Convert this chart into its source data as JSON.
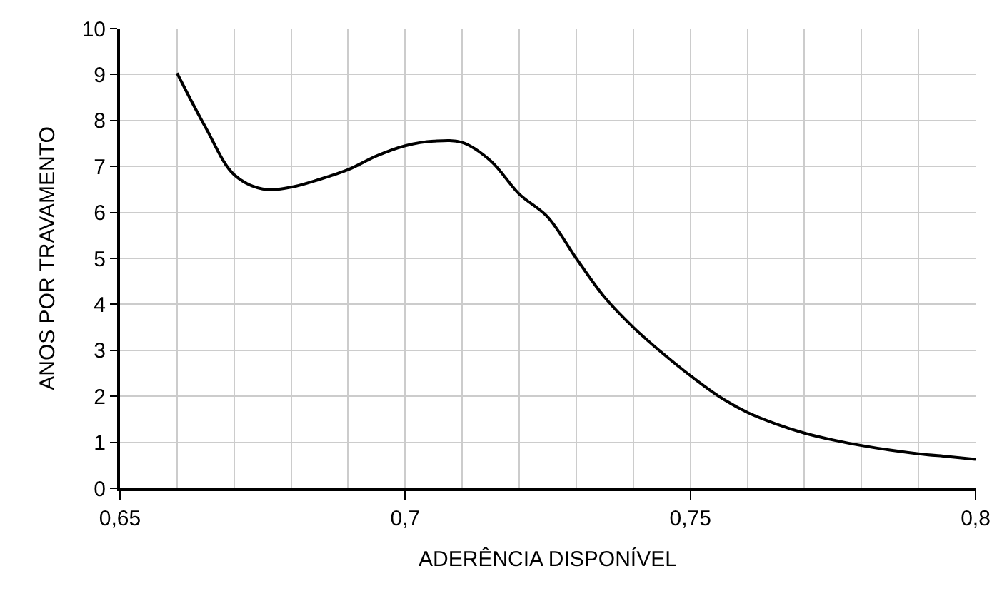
{
  "chart_data": {
    "type": "line",
    "xlabel": "ADERÊNCIA DISPONÍVEL",
    "ylabel": "ANOS POR TRAVAMENTO",
    "x": [
      0.66,
      0.665,
      0.67,
      0.675,
      0.68,
      0.685,
      0.69,
      0.695,
      0.7,
      0.705,
      0.71,
      0.715,
      0.72,
      0.725,
      0.73,
      0.735,
      0.74,
      0.745,
      0.75,
      0.755,
      0.76,
      0.765,
      0.77,
      0.775,
      0.78,
      0.785,
      0.79,
      0.795,
      0.8
    ],
    "series": [
      {
        "color": "#000000",
        "values": [
          9.03,
          7.85,
          6.82,
          6.51,
          6.55,
          6.72,
          6.93,
          7.23,
          7.45,
          7.55,
          7.52,
          7.12,
          6.4,
          5.9,
          5.0,
          4.15,
          3.5,
          2.95,
          2.45,
          2.0,
          1.65,
          1.4,
          1.2,
          1.05,
          0.93,
          0.83,
          0.75,
          0.69,
          0.63
        ]
      }
    ],
    "xlim": [
      0.65,
      0.8
    ],
    "xticks": [
      {
        "value": 0.65,
        "label": "0,65"
      },
      {
        "value": 0.66,
        "label": null
      },
      {
        "value": 0.67,
        "label": null
      },
      {
        "value": 0.68,
        "label": null
      },
      {
        "value": 0.69,
        "label": null
      },
      {
        "value": 0.7,
        "label": "0,7"
      },
      {
        "value": 0.71,
        "label": null
      },
      {
        "value": 0.72,
        "label": null
      },
      {
        "value": 0.73,
        "label": null
      },
      {
        "value": 0.74,
        "label": null
      },
      {
        "value": 0.75,
        "label": "0,75"
      },
      {
        "value": 0.76,
        "label": null
      },
      {
        "value": 0.77,
        "label": null
      },
      {
        "value": 0.78,
        "label": null
      },
      {
        "value": 0.79,
        "label": null
      },
      {
        "value": 0.8,
        "label": "0,8"
      }
    ],
    "ylim": [
      0,
      10
    ],
    "yticks": [
      0,
      1,
      2,
      3,
      4,
      5,
      6,
      7,
      8,
      9,
      10
    ],
    "grid": true,
    "marker": "none",
    "line_style": "solid"
  }
}
